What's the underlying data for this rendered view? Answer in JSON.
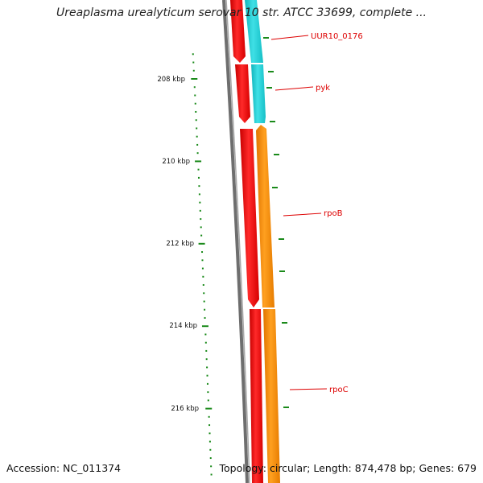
{
  "title": "Ureaplasma urealyticum serovar 10 str. ATCC 33699, complete ...",
  "footer": {
    "accession_label": "Accession: NC_011374",
    "summary_label": "Topology: circular; Length: 874,478 bp; Genes: 679"
  },
  "colors": {
    "backbone": "#7a7a7a",
    "track_red": "#ff0000",
    "track_cyan": "#1ccfd6",
    "track_orange": "#ff8c00",
    "ticks": "#1a8a1a",
    "labels": "#dd0000"
  },
  "ruler": {
    "unit": "kbp",
    "major": [
      {
        "kbp": 208,
        "label": "208 kbp"
      },
      {
        "kbp": 210,
        "label": "210 kbp"
      },
      {
        "kbp": 212,
        "label": "212 kbp"
      },
      {
        "kbp": 214,
        "label": "214 kbp"
      },
      {
        "kbp": 216,
        "label": "216 kbp"
      }
    ]
  },
  "genes": [
    {
      "label": "UUR10_0176",
      "track": "cyan"
    },
    {
      "label": "pyk",
      "track": "cyan"
    },
    {
      "label": "rpoB",
      "track": "orange"
    },
    {
      "label": "rpoC",
      "track": "orange"
    }
  ]
}
